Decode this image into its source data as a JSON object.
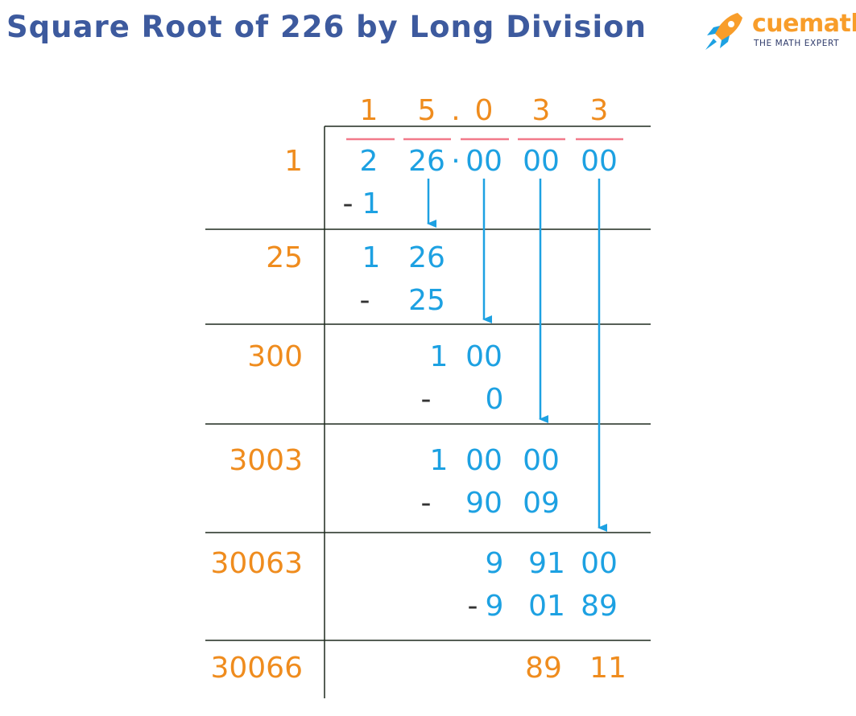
{
  "title": "Square Root of 226 by Long Division",
  "brand": {
    "name": "cuemath",
    "tagline": "THE MATH EXPERT",
    "icon": "rocket-icon"
  },
  "colors": {
    "title": "#3d5a9e",
    "quotient": "#ef8c1e",
    "divisor": "#ef8c1e",
    "work": "#1da1e2",
    "lines": "#1f2a1f",
    "overbar": "#f27a8a",
    "minus": "#333333",
    "brand_orange": "#f89d2a",
    "brand_blue": "#1da1e2"
  },
  "quotient": {
    "digits": [
      "1",
      "5",
      "0",
      "3",
      "3"
    ],
    "decimal_point": "."
  },
  "dividend": {
    "groups": [
      "2",
      "26",
      "00",
      "00",
      "00"
    ],
    "decimal_point": "·"
  },
  "rows": [
    {
      "divisor": "1",
      "lines": [
        [
          {
            "t": "- ",
            "c": "m"
          },
          {
            "t": "1",
            "c": "w"
          }
        ]
      ]
    },
    {
      "divisor": "25",
      "lines": [
        [
          {
            "t": "1",
            "c": "w"
          },
          {
            "t": "26",
            "c": "w"
          }
        ],
        [
          {
            "t": "-",
            "c": "m"
          },
          {
            "t": "25",
            "c": "w"
          }
        ]
      ]
    },
    {
      "divisor": "300",
      "lines": [
        [
          {
            "t": "1",
            "c": "w"
          },
          {
            "t": "00",
            "c": "w"
          }
        ],
        [
          {
            "t": "-",
            "c": "m"
          },
          {
            "t": "0",
            "c": "w"
          }
        ]
      ]
    },
    {
      "divisor": "3003",
      "lines": [
        [
          {
            "t": "1",
            "c": "w"
          },
          {
            "t": "00",
            "c": "w"
          },
          {
            "t": "00",
            "c": "w"
          }
        ],
        [
          {
            "t": "-",
            "c": "m"
          },
          {
            "t": "90",
            "c": "w"
          },
          {
            "t": "09",
            "c": "w"
          }
        ]
      ]
    },
    {
      "divisor": "30063",
      "lines": [
        [
          {
            "t": "9",
            "c": "w"
          },
          {
            "t": "91",
            "c": "w"
          },
          {
            "t": "00",
            "c": "w"
          }
        ],
        [
          {
            "t": "-",
            "c": "m"
          },
          {
            "t": "9",
            "c": "w"
          },
          {
            "t": "01",
            "c": "w"
          },
          {
            "t": "89",
            "c": "w"
          }
        ]
      ]
    },
    {
      "divisor": "30066",
      "lines": [
        [
          {
            "t": "89",
            "c": "q"
          },
          {
            "t": "11",
            "c": "q"
          }
        ]
      ]
    }
  ]
}
